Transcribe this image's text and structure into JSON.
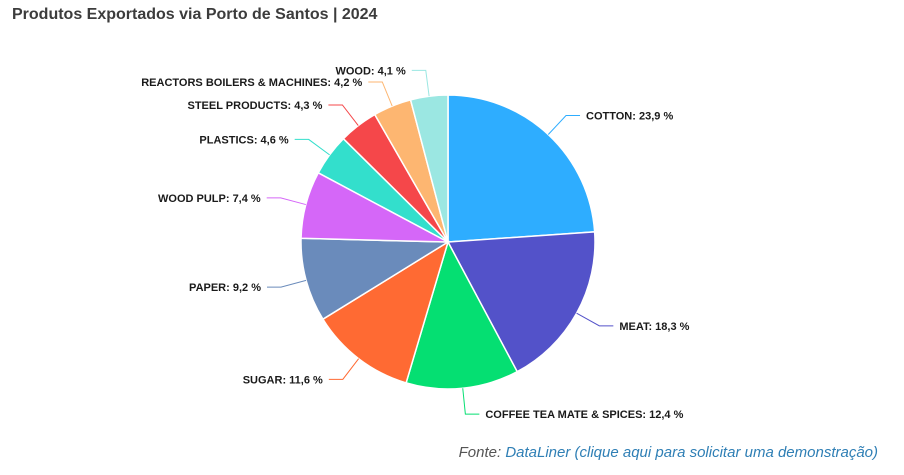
{
  "header": {
    "title": "Produtos Exportados via Porto de Santos | 2024"
  },
  "footer": {
    "prefix": "Fonte: ",
    "link_text": "DataLiner (clique aqui para solicitar uma demonstração)"
  },
  "chart_data": {
    "type": "pie",
    "title": "Produtos Exportados via Porto de Santos | 2024",
    "unit": "%",
    "slices": [
      {
        "label": "COTTON",
        "value": 23.9,
        "display": "23,9 %",
        "color": "#2eadff"
      },
      {
        "label": "MEAT",
        "value": 18.3,
        "display": "18,3 %",
        "color": "#5352c9"
      },
      {
        "label": "COFFEE TEA MATE & SPICES",
        "value": 12.4,
        "display": "12,4 %",
        "color": "#05df72"
      },
      {
        "label": "SUGAR",
        "value": 11.6,
        "display": "11,6 %",
        "color": "#ff6a33"
      },
      {
        "label": "PAPER",
        "value": 9.2,
        "display": "9,2 %",
        "color": "#6a8bbb"
      },
      {
        "label": "WOOD PULP",
        "value": 7.4,
        "display": "7,4 %",
        "color": "#d567f8"
      },
      {
        "label": "PLASTICS",
        "value": 4.6,
        "display": "4,6 %",
        "color": "#33dfcc"
      },
      {
        "label": "STEEL PRODUCTS",
        "value": 4.3,
        "display": "4,3 %",
        "color": "#f5474a"
      },
      {
        "label": "REACTORS BOILERS & MACHINES",
        "value": 4.2,
        "display": "4,2 %",
        "color": "#fdb671"
      },
      {
        "label": "WOOD",
        "value": 4.1,
        "display": "4,1 %",
        "color": "#9be7e2"
      }
    ]
  }
}
